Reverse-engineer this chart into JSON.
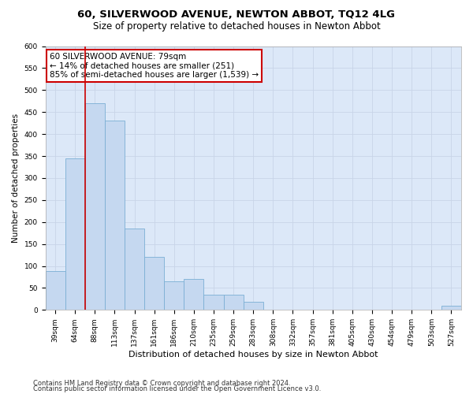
{
  "title": "60, SILVERWOOD AVENUE, NEWTON ABBOT, TQ12 4LG",
  "subtitle": "Size of property relative to detached houses in Newton Abbot",
  "xlabel": "Distribution of detached houses by size in Newton Abbot",
  "ylabel": "Number of detached properties",
  "categories": [
    "39sqm",
    "64sqm",
    "88sqm",
    "113sqm",
    "137sqm",
    "161sqm",
    "186sqm",
    "210sqm",
    "235sqm",
    "259sqm",
    "283sqm",
    "308sqm",
    "332sqm",
    "357sqm",
    "381sqm",
    "405sqm",
    "430sqm",
    "454sqm",
    "479sqm",
    "503sqm",
    "527sqm"
  ],
  "values": [
    88,
    345,
    470,
    430,
    185,
    120,
    65,
    70,
    35,
    35,
    18,
    0,
    0,
    0,
    0,
    0,
    0,
    0,
    0,
    0,
    10
  ],
  "bar_color": "#c5d8f0",
  "bar_edge_color": "#7bafd4",
  "grid_color": "#c8d4e8",
  "background_color": "#dce8f8",
  "annotation_text": "60 SILVERWOOD AVENUE: 79sqm\n← 14% of detached houses are smaller (251)\n85% of semi-detached houses are larger (1,539) →",
  "vline_x": 1.5,
  "vline_color": "#cc0000",
  "annotation_box_color": "white",
  "annotation_box_edge": "#cc0000",
  "ylim": [
    0,
    600
  ],
  "yticks": [
    0,
    50,
    100,
    150,
    200,
    250,
    300,
    350,
    400,
    450,
    500,
    550,
    600
  ],
  "footer1": "Contains HM Land Registry data © Crown copyright and database right 2024.",
  "footer2": "Contains public sector information licensed under the Open Government Licence v3.0.",
  "title_fontsize": 9.5,
  "subtitle_fontsize": 8.5,
  "xlabel_fontsize": 8,
  "ylabel_fontsize": 7.5,
  "tick_fontsize": 6.5,
  "footer_fontsize": 6,
  "annot_fontsize": 7.5
}
